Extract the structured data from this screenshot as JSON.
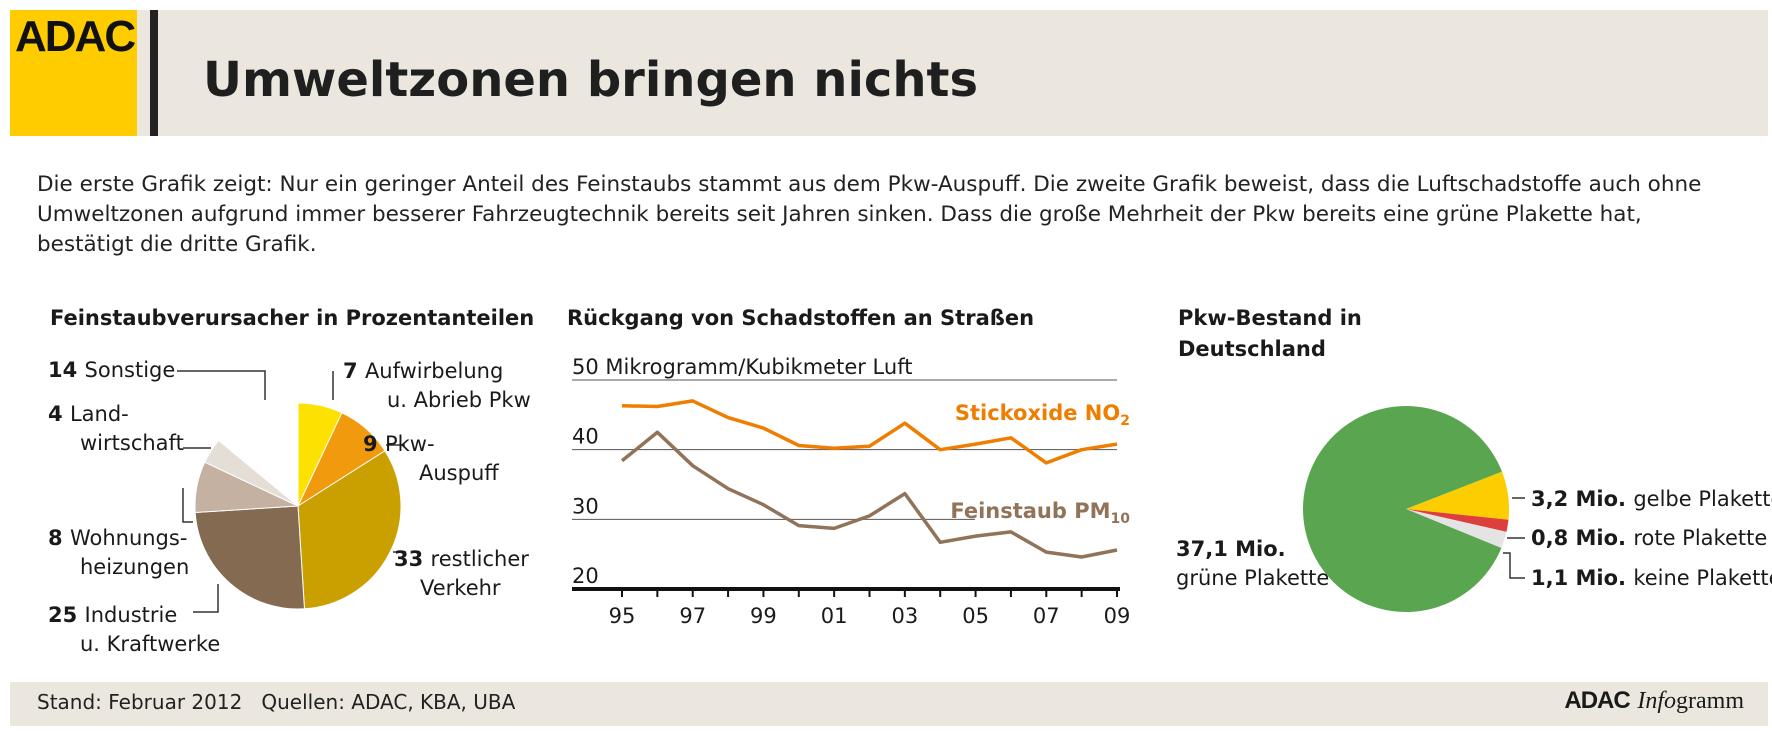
{
  "header": {
    "logo": "ADAC",
    "title": "Umweltzonen bringen nichts"
  },
  "intro": "Die erste Grafik zeigt: Nur ein geringer Anteil des Feinstaubs stammt aus dem Pkw-Auspuff. Die zweite Grafik beweist, dass die Luftschadstoffe auch ohne Umweltzonen aufgrund immer besserer Fahrzeugtechnik bereits seit Jahren sinken. Dass die große Mehrheit der Pkw bereits eine grüne Plakette hat, bestätigt die dritte Grafik.",
  "chart_data": [
    {
      "type": "pie",
      "title": "Feinstaubverursacher in Prozentanteilen",
      "slices": [
        {
          "value": 7,
          "label": [
            "Aufwirbelung",
            "u. Abrieb Pkw"
          ],
          "color": "#fde100"
        },
        {
          "value": 9,
          "label": [
            "Pkw-",
            "Auspuff"
          ],
          "color": "#f29a0e"
        },
        {
          "value": 33,
          "label": [
            "restlicher",
            "Verkehr"
          ],
          "color": "#c9a000"
        },
        {
          "value": 25,
          "label": [
            "Industrie",
            "u. Kraftwerke"
          ],
          "color": "#836a50"
        },
        {
          "value": 8,
          "label": [
            "Wohnungs-",
            "heizungen"
          ],
          "color": "#c4b1a2"
        },
        {
          "value": 4,
          "label": [
            "Land-",
            "wirtschaft"
          ],
          "color": "#e5ded7"
        },
        {
          "value": 14,
          "label": [
            "Sonstige"
          ],
          "color": "#ffffff"
        }
      ]
    },
    {
      "type": "line",
      "title": "Rückgang von Schadstoffen an Straßen",
      "ylabel": "Mikrogramm/Kubikmeter Luft",
      "ylim": [
        20,
        50
      ],
      "yticks": [
        50,
        40,
        30,
        20
      ],
      "x": [
        1995,
        1996,
        1997,
        1998,
        1999,
        2000,
        2001,
        2002,
        2003,
        2004,
        2005,
        2006,
        2007,
        2008,
        2009
      ],
      "xticks": [
        "95",
        "97",
        "99",
        "01",
        "03",
        "05",
        "07",
        "09"
      ],
      "series": [
        {
          "name": "Stickoxide NO",
          "subscript": "2",
          "color": "#ee7d00",
          "values": [
            46.3,
            46.2,
            47.0,
            44.6,
            43.1,
            40.6,
            40.2,
            40.5,
            43.8,
            40.0,
            40.8,
            41.7,
            38.1,
            40.0,
            40.8
          ]
        },
        {
          "name": "Feinstaub PM",
          "subscript": "10",
          "color": "#907358",
          "values": [
            38.4,
            42.5,
            37.7,
            34.4,
            32.1,
            29.1,
            28.7,
            30.5,
            33.7,
            26.7,
            27.6,
            28.2,
            25.3,
            24.6,
            25.6
          ]
        }
      ]
    },
    {
      "type": "pie",
      "title": "Pkw-Bestand in Deutschland",
      "title_lines": [
        "Pkw-Bestand in",
        "Deutschland"
      ],
      "unit": "Mio.",
      "slices": [
        {
          "value": 37.1,
          "value_label": "37,1",
          "label": "grüne Plakette",
          "color": "#5aa650"
        },
        {
          "value": 3.2,
          "value_label": "3,2",
          "label": "gelbe Plakette",
          "color": "#fccd00"
        },
        {
          "value": 0.8,
          "value_label": "0,8",
          "label": "rote Plakette",
          "color": "#dd3f3d"
        },
        {
          "value": 1.1,
          "value_label": "1,1",
          "label": "keine Plakette",
          "color": "#e4e4e4"
        }
      ]
    }
  ],
  "footer": {
    "stand": "Stand: Februar 2012",
    "sources": "Quellen: ADAC, KBA, UBA",
    "brand_bold": "ADAC",
    "brand_italic": "Info",
    "brand_rest": "gramm"
  }
}
